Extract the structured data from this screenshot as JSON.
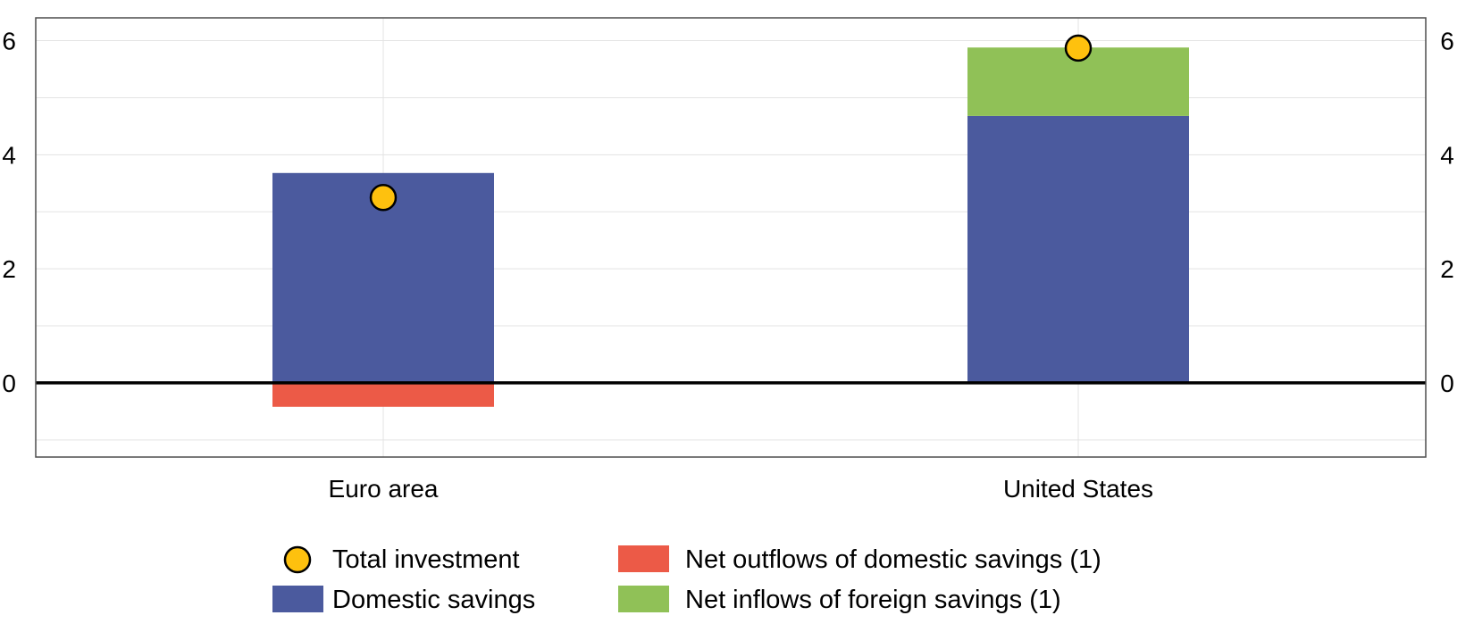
{
  "chart_data": {
    "type": "bar",
    "stacked": true,
    "categories": [
      "Euro area",
      "United States"
    ],
    "series": [
      {
        "name": "Domestic savings",
        "color": "#4b5a9e",
        "values": [
          3.68,
          4.68
        ]
      },
      {
        "name": "Net outflows of domestic savings (1)",
        "color": "#ec5a47",
        "values": [
          -0.42,
          0
        ]
      },
      {
        "name": "Net inflows of foreign savings (1)",
        "color": "#90c157",
        "values": [
          0,
          1.2
        ]
      }
    ],
    "markers": {
      "name": "Total investment",
      "color": "#fec10e",
      "values": [
        3.25,
        5.87
      ]
    },
    "ylim": [
      -1.3,
      6.4
    ],
    "yticks": [
      0,
      2,
      4,
      6
    ],
    "ytick_labels": [
      "0",
      "2",
      "4",
      "6"
    ],
    "minor_gridlines": [
      -1,
      1,
      3,
      5
    ],
    "grid": true,
    "legend_position": "bottom",
    "legend_order": [
      "Total investment",
      "Net outflows of domestic savings (1)",
      "Domestic savings",
      "Net inflows of foreign savings (1)"
    ]
  }
}
